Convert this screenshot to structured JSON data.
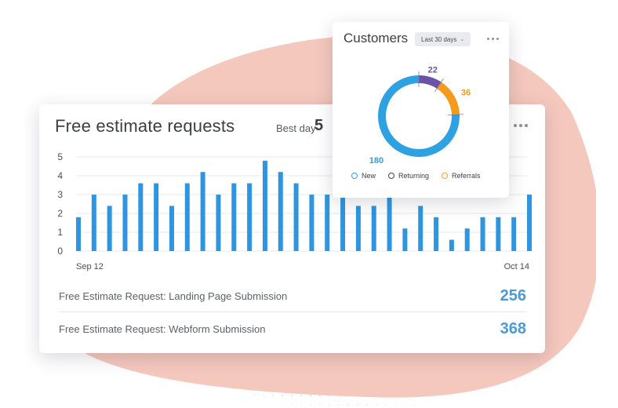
{
  "main": {
    "title": "Free estimate requests",
    "best_day_label": "Best day",
    "best_day_value": "5",
    "metrics": [
      {
        "label": "Free Estimate Request: Landing Page Submission",
        "value": "256"
      },
      {
        "label": "Free Estimate Request: Webform Submission",
        "value": "368"
      }
    ]
  },
  "chart_data": [
    {
      "type": "bar",
      "x_start_label": "Sep 12",
      "x_end_label": "Oct 14",
      "yticks": [
        "0",
        "1",
        "2",
        "3",
        "4",
        "5"
      ],
      "ylim": [
        0,
        5
      ],
      "grid": true,
      "bar_color": "#2e96e0",
      "values": [
        1.8,
        3,
        2.4,
        3,
        3.6,
        3.6,
        2.4,
        3.6,
        4.2,
        3,
        3.6,
        3.6,
        4.8,
        4.2,
        3.6,
        3,
        3,
        3,
        2.4,
        2.4,
        3,
        1.2,
        2.4,
        1.8,
        0.6,
        1.2,
        1.8,
        1.8,
        1.8,
        3
      ]
    },
    {
      "type": "pie",
      "title": "Customers",
      "labels": [
        "New",
        "Returning",
        "Referrals"
      ],
      "values": [
        180,
        22,
        36
      ],
      "colors": [
        "#2ea1e2",
        "#6a53a8",
        "#f59a1d"
      ]
    }
  ],
  "customers": {
    "title": "Customers",
    "period": "Last 30 days",
    "legend": [
      {
        "label": "New",
        "color": "#2ea1e2"
      },
      {
        "label": "Returning",
        "color": "#3b4556"
      },
      {
        "label": "Referrals",
        "color": "#f5a623"
      }
    ],
    "slice_labels": [
      "180",
      "22",
      "36"
    ]
  }
}
